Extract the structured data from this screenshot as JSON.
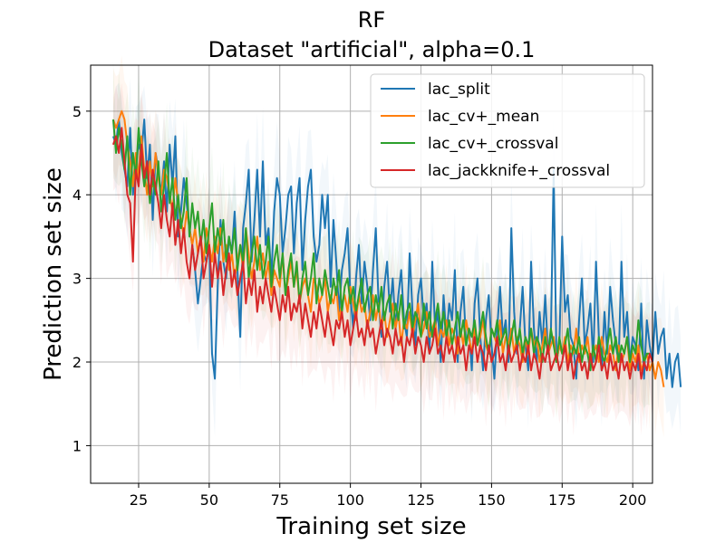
{
  "chart_data": {
    "type": "line",
    "title": "RF",
    "subtitle": "Dataset \"artificial\", alpha=0.1",
    "xlabel": "Training set size",
    "ylabel": "Prediction set size",
    "xlim": [
      8,
      207
    ],
    "ylim": [
      0.55,
      5.55
    ],
    "xticks": [
      25,
      50,
      75,
      100,
      125,
      150,
      175,
      200
    ],
    "yticks": [
      1,
      2,
      3,
      4,
      5
    ],
    "grid": true,
    "legend_position": "top-right",
    "x_start": 16,
    "x_step": 1,
    "series": [
      {
        "name": "lac_split",
        "color": "#1f77b4",
        "band_color": "#1f77b4",
        "values": [
          4.7,
          4.6,
          4.9,
          4.5,
          4.3,
          4.1,
          4.8,
          4.0,
          4.4,
          4.6,
          4.5,
          4.9,
          4.2,
          4.6,
          3.7,
          4.5,
          4.3,
          4.0,
          4.4,
          3.8,
          4.6,
          4.1,
          4.7,
          3.5,
          3.8,
          4.2,
          3.9,
          3.6,
          3.4,
          3.1,
          2.7,
          3.0,
          3.3,
          3.2,
          3.4,
          2.1,
          1.8,
          2.9,
          3.7,
          3.2,
          3.0,
          3.5,
          3.3,
          3.8,
          3.1,
          2.3,
          3.6,
          3.9,
          4.3,
          3.2,
          3.7,
          4.3,
          3.5,
          4.4,
          3.4,
          3.6,
          3.0,
          3.8,
          4.2,
          4.0,
          3.3,
          3.6,
          4.0,
          4.1,
          3.3,
          3.9,
          4.2,
          3.1,
          3.7,
          4.1,
          4.3,
          3.5,
          3.2,
          3.4,
          4.0,
          3.6,
          4.0,
          2.9,
          3.7,
          3.2,
          2.6,
          3.1,
          3.3,
          3.6,
          2.8,
          2.4,
          3.0,
          3.4,
          2.7,
          3.2,
          2.9,
          2.5,
          3.1,
          3.6,
          2.7,
          2.3,
          2.9,
          3.2,
          2.6,
          3.0,
          2.4,
          2.8,
          3.1,
          2.5,
          2.3,
          3.3,
          2.6,
          2.2,
          2.8,
          3.0,
          2.5,
          2.7,
          2.1,
          3.2,
          2.4,
          2.6,
          2.0,
          2.8,
          2.3,
          2.7,
          2.5,
          3.1,
          2.0,
          2.6,
          2.9,
          2.2,
          2.4,
          1.9,
          2.7,
          3.0,
          2.3,
          1.9,
          2.5,
          2.8,
          2.2,
          1.8,
          2.4,
          2.9,
          2.3,
          2.5,
          2.0,
          3.6,
          2.6,
          2.1,
          2.4,
          2.9,
          2.2,
          1.9,
          3.2,
          2.4,
          2.0,
          2.6,
          2.2,
          2.8,
          2.1,
          2.3,
          4.3,
          2.0,
          2.2,
          3.5,
          2.6,
          2.8,
          2.3,
          2.2,
          1.8,
          2.5,
          3.0,
          2.2,
          2.4,
          2.7,
          2.0,
          3.2,
          2.3,
          1.9,
          2.6,
          2.1,
          2.9,
          2.5,
          2.2,
          2.0,
          3.2,
          2.3,
          2.6,
          2.0,
          2.3,
          2.2,
          1.9,
          2.7,
          1.8,
          2.5,
          2.2,
          2.0,
          2.6,
          2.1,
          2.3,
          2.4,
          1.8,
          2.1,
          1.7,
          2.0,
          2.1,
          1.7
        ]
      },
      {
        "name": "lac_cv+_mean",
        "color": "#ff7f0e",
        "band_color": "#ff7f0e",
        "values": [
          4.9,
          4.8,
          4.9,
          5.0,
          4.9,
          4.6,
          4.4,
          4.1,
          4.5,
          4.2,
          4.7,
          4.3,
          4.0,
          4.4,
          4.1,
          4.5,
          4.2,
          4.0,
          4.3,
          4.2,
          4.0,
          3.8,
          4.2,
          3.9,
          3.7,
          3.5,
          3.8,
          3.6,
          3.4,
          3.6,
          3.3,
          3.5,
          3.2,
          3.6,
          3.4,
          3.2,
          3.5,
          3.3,
          3.6,
          3.2,
          3.4,
          3.1,
          3.3,
          3.0,
          3.2,
          3.4,
          3.1,
          3.6,
          3.3,
          3.0,
          3.2,
          3.5,
          3.1,
          3.3,
          3.0,
          3.2,
          2.8,
          3.1,
          3.0,
          2.9,
          3.3,
          2.8,
          3.0,
          3.2,
          2.9,
          3.1,
          2.7,
          2.9,
          3.0,
          2.8,
          2.6,
          3.0,
          2.9,
          2.7,
          2.8,
          3.0,
          2.6,
          2.8,
          2.7,
          2.9,
          2.5,
          2.7,
          2.8,
          2.6,
          2.9,
          2.7,
          2.5,
          2.8,
          2.6,
          2.7,
          2.4,
          2.6,
          2.8,
          2.5,
          2.7,
          2.4,
          2.6,
          2.3,
          2.5,
          2.7,
          2.4,
          2.6,
          2.2,
          2.5,
          2.4,
          2.6,
          2.3,
          2.5,
          2.7,
          2.3,
          2.4,
          2.6,
          2.3,
          2.4,
          2.5,
          2.2,
          2.4,
          2.3,
          2.5,
          2.2,
          2.4,
          2.3,
          2.1,
          2.4,
          2.2,
          2.5,
          2.3,
          2.1,
          2.4,
          2.2,
          2.3,
          2.5,
          2.2,
          2.1,
          2.4,
          2.3,
          2.2,
          2.5,
          2.1,
          2.3,
          2.2,
          2.4,
          2.1,
          2.3,
          2.2,
          2.0,
          2.3,
          2.1,
          2.4,
          2.2,
          2.3,
          2.0,
          2.2,
          2.4,
          2.1,
          2.2,
          2.3,
          2.0,
          2.2,
          2.1,
          2.3,
          2.0,
          2.2,
          2.1,
          2.4,
          2.0,
          2.2,
          2.1,
          2.3,
          2.0,
          2.1,
          2.2,
          2.0,
          2.3,
          2.1,
          2.0,
          2.2,
          2.1,
          1.9,
          2.2,
          2.0,
          2.1,
          2.3,
          1.9,
          2.1,
          2.0,
          2.2,
          1.9,
          2.0,
          2.1,
          1.9,
          2.0,
          1.8,
          2.0,
          1.9,
          1.7
        ]
      },
      {
        "name": "lac_cv+_crossval",
        "color": "#2ca02c",
        "band_color": "#2ca02c",
        "values": [
          4.9,
          4.5,
          4.8,
          4.6,
          4.3,
          4.7,
          4.0,
          4.5,
          4.2,
          4.8,
          4.4,
          4.1,
          4.3,
          3.9,
          4.2,
          4.0,
          4.4,
          3.8,
          4.1,
          4.5,
          3.9,
          4.2,
          3.7,
          4.0,
          3.6,
          3.8,
          4.2,
          3.5,
          3.9,
          3.6,
          3.8,
          3.4,
          3.7,
          3.3,
          3.6,
          3.9,
          3.3,
          3.6,
          3.4,
          3.7,
          3.2,
          3.5,
          3.3,
          3.6,
          3.1,
          3.4,
          3.2,
          3.6,
          3.0,
          3.3,
          3.5,
          3.1,
          3.4,
          3.0,
          3.2,
          3.5,
          2.9,
          3.2,
          3.4,
          3.0,
          3.3,
          2.8,
          3.1,
          3.3,
          2.9,
          3.2,
          2.7,
          3.0,
          3.2,
          2.8,
          3.0,
          3.3,
          2.7,
          3.0,
          2.8,
          3.1,
          2.9,
          2.7,
          3.0,
          2.8,
          3.1,
          2.6,
          2.9,
          3.0,
          2.7,
          2.9,
          2.6,
          2.8,
          3.0,
          2.6,
          2.8,
          2.9,
          2.5,
          2.8,
          2.6,
          2.9,
          2.5,
          2.7,
          2.8,
          2.4,
          2.7,
          2.5,
          2.8,
          2.4,
          2.6,
          2.7,
          2.4,
          2.6,
          2.5,
          2.3,
          2.7,
          2.4,
          2.6,
          2.3,
          2.5,
          2.7,
          2.4,
          2.6,
          2.3,
          2.5,
          2.2,
          2.4,
          2.6,
          2.3,
          2.5,
          2.2,
          2.4,
          2.3,
          2.5,
          2.2,
          2.4,
          2.6,
          2.3,
          2.1,
          2.4,
          2.3,
          2.5,
          2.2,
          2.3,
          2.4,
          2.1,
          2.3,
          2.5,
          2.2,
          2.4,
          2.1,
          2.3,
          2.2,
          2.4,
          2.1,
          2.3,
          2.2,
          2.0,
          2.3,
          2.1,
          2.4,
          2.2,
          2.0,
          2.3,
          2.1,
          2.2,
          2.4,
          2.0,
          2.2,
          2.1,
          2.3,
          2.0,
          2.2,
          2.1,
          1.9,
          2.2,
          2.0,
          2.3,
          2.1,
          2.0,
          2.2,
          2.4,
          2.1,
          2.3,
          2.0,
          2.2,
          2.1,
          2.3,
          2.0,
          2.2,
          2.1,
          2.5,
          2.2,
          2.0,
          2.1,
          2.1
        ]
      },
      {
        "name": "lac_jackknife+_crossval",
        "color": "#d62728",
        "band_color": "#d62728",
        "values": [
          4.6,
          4.7,
          4.5,
          4.8,
          4.4,
          4.0,
          3.9,
          3.2,
          4.3,
          4.1,
          4.6,
          4.2,
          4.4,
          4.0,
          4.3,
          4.1,
          3.9,
          3.6,
          4.0,
          3.7,
          3.5,
          3.9,
          3.4,
          3.7,
          3.3,
          3.6,
          3.2,
          3.0,
          3.4,
          3.1,
          3.3,
          3.5,
          3.0,
          3.2,
          3.4,
          2.9,
          3.3,
          3.0,
          3.2,
          2.8,
          3.1,
          3.3,
          2.9,
          3.1,
          2.8,
          3.0,
          3.2,
          2.7,
          3.0,
          2.8,
          3.1,
          2.6,
          2.9,
          2.7,
          3.0,
          2.8,
          2.6,
          2.9,
          2.7,
          2.5,
          2.8,
          2.6,
          2.9,
          2.5,
          2.7,
          2.6,
          2.8,
          2.4,
          2.7,
          2.5,
          2.3,
          2.6,
          2.4,
          2.7,
          2.5,
          2.3,
          2.6,
          2.4,
          2.2,
          2.5,
          2.4,
          2.6,
          2.3,
          2.5,
          2.2,
          2.4,
          2.6,
          2.3,
          2.4,
          2.2,
          2.5,
          2.3,
          2.4,
          2.1,
          2.3,
          2.5,
          2.2,
          2.4,
          2.3,
          2.1,
          2.4,
          2.2,
          2.3,
          2.0,
          2.3,
          2.2,
          2.4,
          2.1,
          2.3,
          2.2,
          2.0,
          2.3,
          2.1,
          2.2,
          2.4,
          2.1,
          2.2,
          2.0,
          2.3,
          2.1,
          2.2,
          2.0,
          2.3,
          2.1,
          2.2,
          1.9,
          2.2,
          2.1,
          2.3,
          2.0,
          2.2,
          2.1,
          1.9,
          2.2,
          2.0,
          2.1,
          2.3,
          2.0,
          2.1,
          1.9,
          2.2,
          2.0,
          2.1,
          2.2,
          1.9,
          2.1,
          2.0,
          2.2,
          1.9,
          2.1,
          2.0,
          1.8,
          2.1,
          2.0,
          2.2,
          1.9,
          2.0,
          2.1,
          1.9,
          2.0,
          2.2,
          1.9,
          2.1,
          1.8,
          2.0,
          2.1,
          1.9,
          2.0,
          1.8,
          2.1,
          1.9,
          2.0,
          2.2,
          1.9,
          2.0,
          1.8,
          2.1,
          1.9,
          2.0,
          1.8,
          2.1,
          1.9,
          2.0,
          1.8,
          2.0,
          1.9,
          2.1,
          1.8,
          2.0,
          1.9,
          2.1,
          2.0
        ]
      }
    ]
  }
}
